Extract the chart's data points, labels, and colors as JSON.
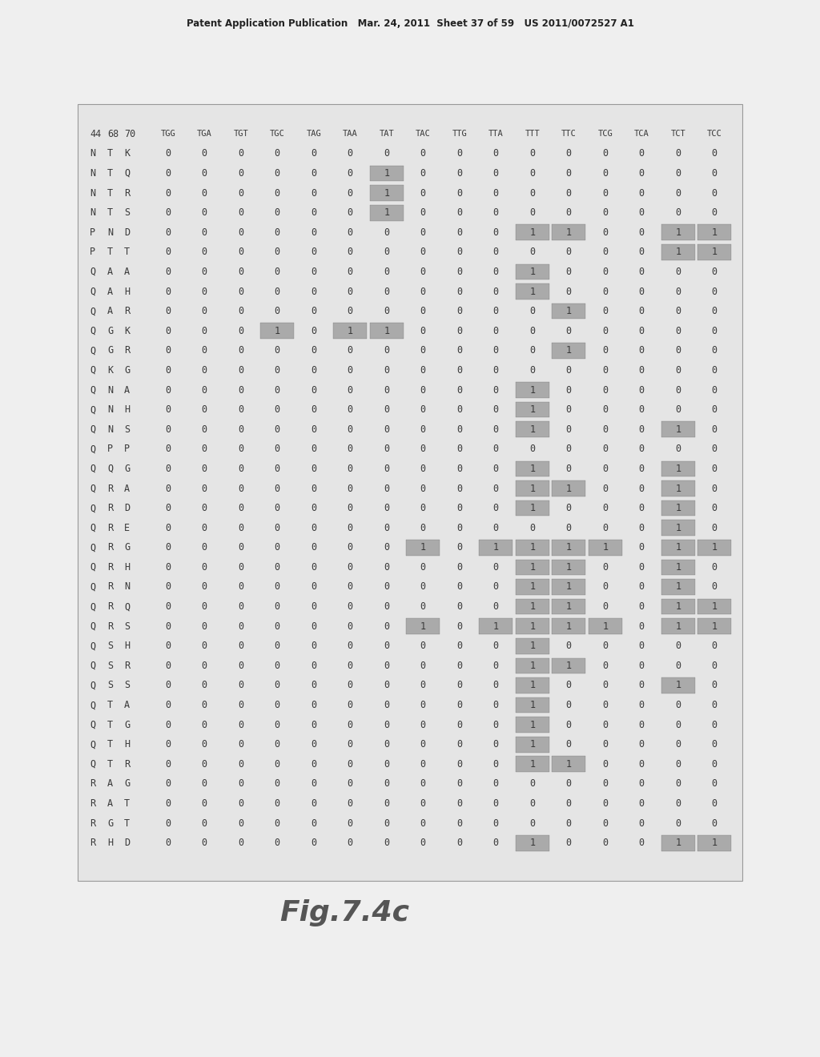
{
  "header": "Patent Application Publication   Mar. 24, 2011  Sheet 37 of 59   US 2011/0072527 A1",
  "figure_label": "Fig.7.4c",
  "col_headers": [
    "44",
    "68",
    "70",
    "TGG",
    "TGA",
    "TGT",
    "TGC",
    "TAG",
    "TAA",
    "TAT",
    "TAC",
    "TTG",
    "TTA",
    "TTT",
    "TTC",
    "TCG",
    "TCA",
    "TCT",
    "TCC"
  ],
  "rows": [
    {
      "label": [
        "N",
        "T",
        "K"
      ],
      "values": [
        0,
        0,
        0,
        0,
        0,
        0,
        0,
        0,
        0,
        0,
        0,
        0,
        0,
        0,
        0,
        0
      ],
      "highlights": []
    },
    {
      "label": [
        "N",
        "T",
        "Q"
      ],
      "values": [
        0,
        0,
        0,
        0,
        0,
        0,
        1,
        0,
        0,
        0,
        0,
        0,
        0,
        0,
        0,
        0
      ],
      "highlights": [
        6
      ]
    },
    {
      "label": [
        "N",
        "T",
        "R"
      ],
      "values": [
        0,
        0,
        0,
        0,
        0,
        0,
        1,
        0,
        0,
        0,
        0,
        0,
        0,
        0,
        0,
        0
      ],
      "highlights": [
        6
      ]
    },
    {
      "label": [
        "N",
        "T",
        "S"
      ],
      "values": [
        0,
        0,
        0,
        0,
        0,
        0,
        1,
        0,
        0,
        0,
        0,
        0,
        0,
        0,
        0,
        0
      ],
      "highlights": [
        6
      ]
    },
    {
      "label": [
        "P",
        "N",
        "D"
      ],
      "values": [
        0,
        0,
        0,
        0,
        0,
        0,
        0,
        0,
        0,
        0,
        1,
        1,
        0,
        0,
        1,
        1
      ],
      "highlights": [
        10,
        11,
        14,
        15
      ]
    },
    {
      "label": [
        "P",
        "T",
        "T"
      ],
      "values": [
        0,
        0,
        0,
        0,
        0,
        0,
        0,
        0,
        0,
        0,
        0,
        0,
        0,
        0,
        1,
        1
      ],
      "highlights": [
        14,
        15
      ]
    },
    {
      "label": [
        "Q",
        "A",
        "A"
      ],
      "values": [
        0,
        0,
        0,
        0,
        0,
        0,
        0,
        0,
        0,
        0,
        1,
        0,
        0,
        0,
        0,
        0
      ],
      "highlights": [
        10
      ]
    },
    {
      "label": [
        "Q",
        "A",
        "H"
      ],
      "values": [
        0,
        0,
        0,
        0,
        0,
        0,
        0,
        0,
        0,
        0,
        1,
        0,
        0,
        0,
        0,
        0
      ],
      "highlights": [
        10
      ]
    },
    {
      "label": [
        "Q",
        "A",
        "R"
      ],
      "values": [
        0,
        0,
        0,
        0,
        0,
        0,
        0,
        0,
        0,
        0,
        0,
        1,
        0,
        0,
        0,
        0
      ],
      "highlights": [
        11
      ]
    },
    {
      "label": [
        "Q",
        "G",
        "K"
      ],
      "values": [
        0,
        0,
        0,
        1,
        0,
        1,
        1,
        0,
        0,
        0,
        0,
        0,
        0,
        0,
        0,
        0
      ],
      "highlights": [
        3,
        5,
        6
      ]
    },
    {
      "label": [
        "Q",
        "G",
        "R"
      ],
      "values": [
        0,
        0,
        0,
        0,
        0,
        0,
        0,
        0,
        0,
        0,
        0,
        1,
        0,
        0,
        0,
        0
      ],
      "highlights": [
        11
      ]
    },
    {
      "label": [
        "Q",
        "K",
        "G"
      ],
      "values": [
        0,
        0,
        0,
        0,
        0,
        0,
        0,
        0,
        0,
        0,
        0,
        0,
        0,
        0,
        0,
        0
      ],
      "highlights": []
    },
    {
      "label": [
        "Q",
        "N",
        "A"
      ],
      "values": [
        0,
        0,
        0,
        0,
        0,
        0,
        0,
        0,
        0,
        0,
        1,
        0,
        0,
        0,
        0,
        0
      ],
      "highlights": [
        10
      ]
    },
    {
      "label": [
        "Q",
        "N",
        "H"
      ],
      "values": [
        0,
        0,
        0,
        0,
        0,
        0,
        0,
        0,
        0,
        0,
        1,
        0,
        0,
        0,
        0,
        0
      ],
      "highlights": [
        10
      ]
    },
    {
      "label": [
        "Q",
        "N",
        "S"
      ],
      "values": [
        0,
        0,
        0,
        0,
        0,
        0,
        0,
        0,
        0,
        0,
        1,
        0,
        0,
        0,
        1,
        0
      ],
      "highlights": [
        10,
        14
      ]
    },
    {
      "label": [
        "Q",
        "P",
        "P"
      ],
      "values": [
        0,
        0,
        0,
        0,
        0,
        0,
        0,
        0,
        0,
        0,
        0,
        0,
        0,
        0,
        0,
        0
      ],
      "highlights": []
    },
    {
      "label": [
        "Q",
        "Q",
        "G"
      ],
      "values": [
        0,
        0,
        0,
        0,
        0,
        0,
        0,
        0,
        0,
        0,
        1,
        0,
        0,
        0,
        1,
        0
      ],
      "highlights": [
        10,
        14
      ]
    },
    {
      "label": [
        "Q",
        "R",
        "A"
      ],
      "values": [
        0,
        0,
        0,
        0,
        0,
        0,
        0,
        0,
        0,
        0,
        1,
        1,
        0,
        0,
        1,
        0
      ],
      "highlights": [
        10,
        11,
        14
      ]
    },
    {
      "label": [
        "Q",
        "R",
        "D"
      ],
      "values": [
        0,
        0,
        0,
        0,
        0,
        0,
        0,
        0,
        0,
        0,
        1,
        0,
        0,
        0,
        1,
        0
      ],
      "highlights": [
        10,
        14
      ]
    },
    {
      "label": [
        "Q",
        "R",
        "E"
      ],
      "values": [
        0,
        0,
        0,
        0,
        0,
        0,
        0,
        0,
        0,
        0,
        0,
        0,
        0,
        0,
        1,
        0
      ],
      "highlights": [
        14
      ]
    },
    {
      "label": [
        "Q",
        "R",
        "G"
      ],
      "values": [
        0,
        0,
        0,
        0,
        0,
        0,
        0,
        1,
        0,
        1,
        1,
        1,
        1,
        0,
        1,
        1
      ],
      "highlights": [
        7,
        9,
        10,
        11,
        12,
        14,
        15
      ]
    },
    {
      "label": [
        "Q",
        "R",
        "H"
      ],
      "values": [
        0,
        0,
        0,
        0,
        0,
        0,
        0,
        0,
        0,
        0,
        1,
        1,
        0,
        0,
        1,
        0
      ],
      "highlights": [
        10,
        11,
        14
      ]
    },
    {
      "label": [
        "Q",
        "R",
        "N"
      ],
      "values": [
        0,
        0,
        0,
        0,
        0,
        0,
        0,
        0,
        0,
        0,
        1,
        1,
        0,
        0,
        1,
        0
      ],
      "highlights": [
        10,
        11,
        14
      ]
    },
    {
      "label": [
        "Q",
        "R",
        "Q"
      ],
      "values": [
        0,
        0,
        0,
        0,
        0,
        0,
        0,
        0,
        0,
        0,
        1,
        1,
        0,
        0,
        1,
        1
      ],
      "highlights": [
        10,
        11,
        14,
        15
      ]
    },
    {
      "label": [
        "Q",
        "R",
        "S"
      ],
      "values": [
        0,
        0,
        0,
        0,
        0,
        0,
        0,
        1,
        0,
        1,
        1,
        1,
        1,
        0,
        1,
        1
      ],
      "highlights": [
        7,
        9,
        10,
        11,
        12,
        14,
        15
      ]
    },
    {
      "label": [
        "Q",
        "S",
        "H"
      ],
      "values": [
        0,
        0,
        0,
        0,
        0,
        0,
        0,
        0,
        0,
        0,
        1,
        0,
        0,
        0,
        0,
        0
      ],
      "highlights": [
        10
      ]
    },
    {
      "label": [
        "Q",
        "S",
        "R"
      ],
      "values": [
        0,
        0,
        0,
        0,
        0,
        0,
        0,
        0,
        0,
        0,
        1,
        1,
        0,
        0,
        0,
        0
      ],
      "highlights": [
        10,
        11
      ]
    },
    {
      "label": [
        "Q",
        "S",
        "S"
      ],
      "values": [
        0,
        0,
        0,
        0,
        0,
        0,
        0,
        0,
        0,
        0,
        1,
        0,
        0,
        0,
        1,
        0
      ],
      "highlights": [
        10,
        14
      ]
    },
    {
      "label": [
        "Q",
        "T",
        "A"
      ],
      "values": [
        0,
        0,
        0,
        0,
        0,
        0,
        0,
        0,
        0,
        0,
        1,
        0,
        0,
        0,
        0,
        0
      ],
      "highlights": [
        10
      ]
    },
    {
      "label": [
        "Q",
        "T",
        "G"
      ],
      "values": [
        0,
        0,
        0,
        0,
        0,
        0,
        0,
        0,
        0,
        0,
        1,
        0,
        0,
        0,
        0,
        0
      ],
      "highlights": [
        10
      ]
    },
    {
      "label": [
        "Q",
        "T",
        "H"
      ],
      "values": [
        0,
        0,
        0,
        0,
        0,
        0,
        0,
        0,
        0,
        0,
        1,
        0,
        0,
        0,
        0,
        0
      ],
      "highlights": [
        10
      ]
    },
    {
      "label": [
        "Q",
        "T",
        "R"
      ],
      "values": [
        0,
        0,
        0,
        0,
        0,
        0,
        0,
        0,
        0,
        0,
        1,
        1,
        0,
        0,
        0,
        0
      ],
      "highlights": [
        10,
        11
      ]
    },
    {
      "label": [
        "R",
        "A",
        "G"
      ],
      "values": [
        0,
        0,
        0,
        0,
        0,
        0,
        0,
        0,
        0,
        0,
        0,
        0,
        0,
        0,
        0,
        0
      ],
      "highlights": []
    },
    {
      "label": [
        "R",
        "A",
        "T"
      ],
      "values": [
        0,
        0,
        0,
        0,
        0,
        0,
        0,
        0,
        0,
        0,
        0,
        0,
        0,
        0,
        0,
        0
      ],
      "highlights": []
    },
    {
      "label": [
        "R",
        "G",
        "T"
      ],
      "values": [
        0,
        0,
        0,
        0,
        0,
        0,
        0,
        0,
        0,
        0,
        0,
        0,
        0,
        0,
        0,
        0
      ],
      "highlights": []
    },
    {
      "label": [
        "R",
        "H",
        "D"
      ],
      "values": [
        0,
        0,
        0,
        0,
        0,
        0,
        0,
        0,
        0,
        0,
        1,
        0,
        0,
        0,
        1,
        1
      ],
      "highlights": [
        10,
        14,
        15
      ]
    }
  ],
  "page_bg": "#efefef",
  "content_bg": "#e5e5e5",
  "highlight_color": "#aaaaaa",
  "text_color": "#3a3a3a",
  "header_color": "#222222",
  "border_color": "#999999"
}
